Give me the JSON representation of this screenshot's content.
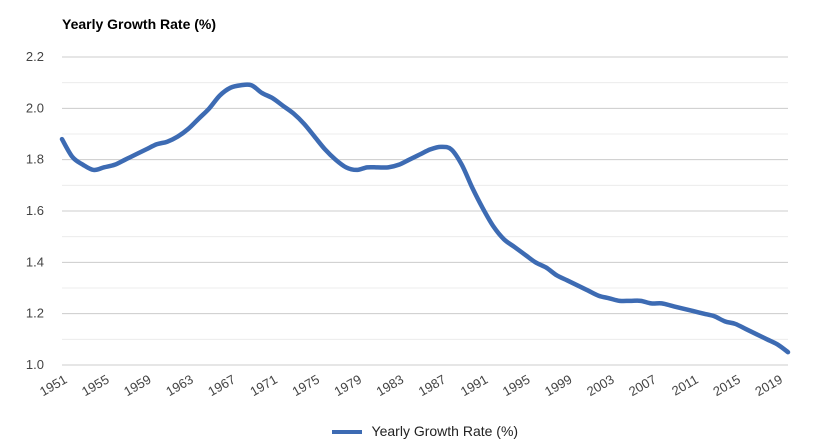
{
  "chart_data": {
    "type": "line",
    "title": "Yearly Growth Rate (%)",
    "xlabel": "",
    "ylabel": "",
    "xlim": [
      1951,
      2020
    ],
    "ylim": [
      1.0,
      2.2
    ],
    "y_ticks": [
      "1.0",
      "1.2",
      "1.4",
      "1.6",
      "1.8",
      "2.0",
      "2.2"
    ],
    "x_ticks": [
      "1951",
      "1955",
      "1959",
      "1963",
      "1967",
      "1971",
      "1975",
      "1979",
      "1983",
      "1987",
      "1991",
      "1995",
      "1999",
      "2003",
      "2007",
      "2011",
      "2015",
      "2019"
    ],
    "grid": true,
    "legend_position": "bottom",
    "series": [
      {
        "name": "Yearly Growth Rate (%)",
        "color": "#3d6bb3",
        "x": [
          1951,
          1952,
          1953,
          1954,
          1955,
          1956,
          1957,
          1958,
          1959,
          1960,
          1961,
          1962,
          1963,
          1964,
          1965,
          1966,
          1967,
          1968,
          1969,
          1970,
          1971,
          1972,
          1973,
          1974,
          1975,
          1976,
          1977,
          1978,
          1979,
          1980,
          1981,
          1982,
          1983,
          1984,
          1985,
          1986,
          1987,
          1988,
          1989,
          1990,
          1991,
          1992,
          1993,
          1994,
          1995,
          1996,
          1997,
          1998,
          1999,
          2000,
          2001,
          2002,
          2003,
          2004,
          2005,
          2006,
          2007,
          2008,
          2009,
          2010,
          2011,
          2012,
          2013,
          2014,
          2015,
          2016,
          2017,
          2018,
          2019,
          2020
        ],
        "values": [
          1.88,
          1.81,
          1.78,
          1.76,
          1.77,
          1.78,
          1.8,
          1.82,
          1.84,
          1.86,
          1.87,
          1.89,
          1.92,
          1.96,
          2.0,
          2.05,
          2.08,
          2.09,
          2.09,
          2.06,
          2.04,
          2.01,
          1.98,
          1.94,
          1.89,
          1.84,
          1.8,
          1.77,
          1.76,
          1.77,
          1.77,
          1.77,
          1.78,
          1.8,
          1.82,
          1.84,
          1.85,
          1.84,
          1.78,
          1.69,
          1.61,
          1.54,
          1.49,
          1.46,
          1.43,
          1.4,
          1.38,
          1.35,
          1.33,
          1.31,
          1.29,
          1.27,
          1.26,
          1.25,
          1.25,
          1.25,
          1.24,
          1.24,
          1.23,
          1.22,
          1.21,
          1.2,
          1.19,
          1.17,
          1.16,
          1.14,
          1.12,
          1.1,
          1.08,
          1.05
        ]
      }
    ]
  }
}
